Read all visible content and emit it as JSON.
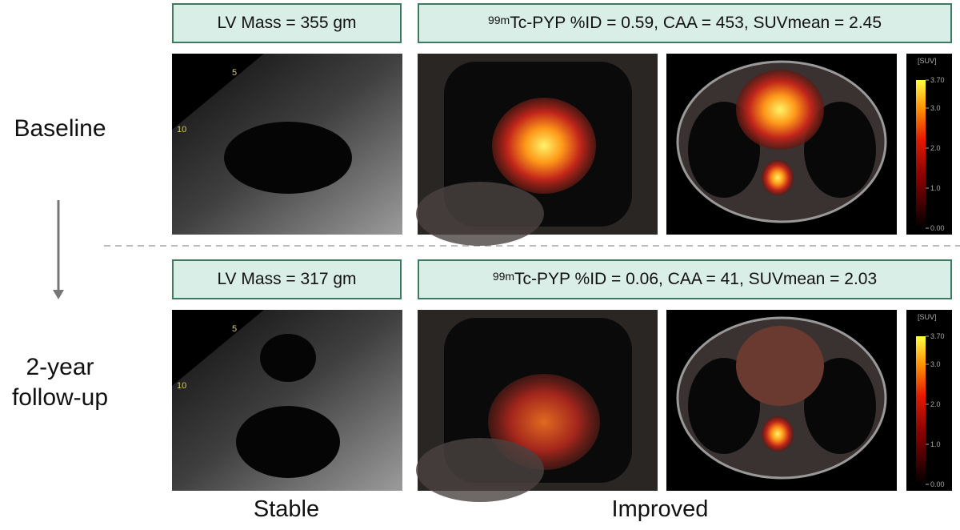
{
  "rows": [
    {
      "label_lines": [
        "Baseline"
      ],
      "echo_box": "LV Mass = 355 gm",
      "pyp_box": {
        "superscript": "99m",
        "text": "Tc-PYP %ID = 0.59, CAA = 453, SUVmean = 2.45"
      }
    },
    {
      "label_lines": [
        "2-year",
        "follow-up"
      ],
      "echo_box": "LV Mass = 317 gm",
      "pyp_box": {
        "superscript": "99m",
        "text": "Tc-PYP %ID = 0.06, CAA = 41, SUVmean = 2.03"
      }
    }
  ],
  "echo_depth_marks": [
    "5",
    "10"
  ],
  "colorbar": {
    "unit": "[SUV]",
    "min": 0,
    "max": 3.7,
    "ticks": [
      {
        "value": 3.7,
        "label": "3.70"
      },
      {
        "value": 3,
        "label": "3.0"
      },
      {
        "value": 2,
        "label": "2.0"
      },
      {
        "value": 1,
        "label": "1.0"
      },
      {
        "value": 0,
        "label": "0.00"
      }
    ]
  },
  "footer": [
    "Stable",
    "Improved"
  ]
}
